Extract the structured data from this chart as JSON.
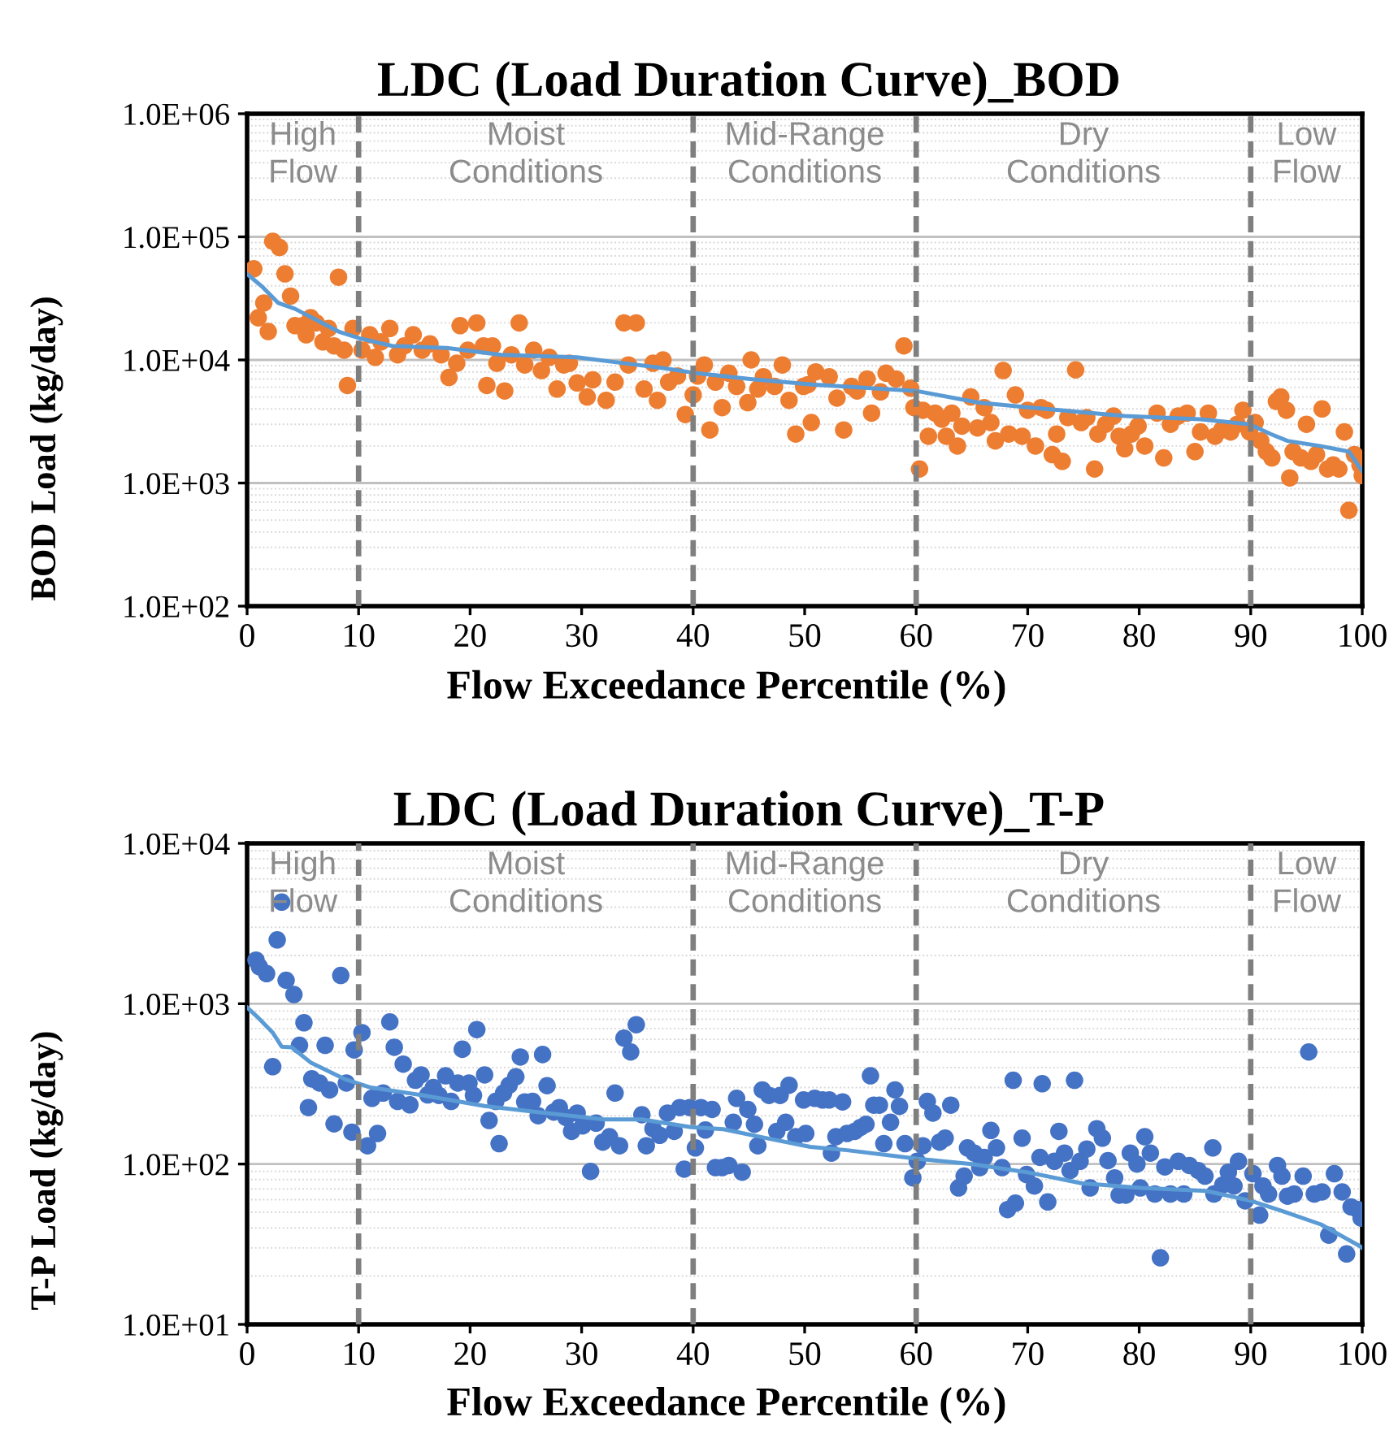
{
  "chart_data": [
    {
      "type": "scatter",
      "title": "LDC (Load Duration Curve)_BOD",
      "xlabel": "Flow Exceedance Percentile (%)",
      "ylabel": "BOD Load (kg/day)",
      "log": "y",
      "grid": "y",
      "xlim": [
        0,
        100
      ],
      "xticks": [
        0,
        10,
        20,
        30,
        40,
        50,
        60,
        70,
        80,
        90,
        100
      ],
      "ylim": [
        100,
        1000000
      ],
      "yticks": [
        {
          "value": 100,
          "label": "1.0E+02"
        },
        {
          "value": 1000,
          "label": "1.0E+03"
        },
        {
          "value": 10000,
          "label": "1.0E+04"
        },
        {
          "value": 100000,
          "label": "1.0E+05"
        },
        {
          "value": 1000000,
          "label": "1.0E+06"
        }
      ],
      "ref_lines": [
        {
          "axis": "x",
          "value": 10,
          "color": "#7f7f7f",
          "line_style": "dashed"
        },
        {
          "axis": "x",
          "value": 40,
          "color": "#7f7f7f",
          "line_style": "dashed"
        },
        {
          "axis": "x",
          "value": 60,
          "color": "#7f7f7f",
          "line_style": "dashed"
        },
        {
          "axis": "x",
          "value": 90,
          "color": "#7f7f7f",
          "line_style": "dashed"
        }
      ],
      "annotations": [
        "High\nFlow",
        "Moist\nConditions",
        "Mid-Range\nConditions",
        "Dry\nConditions",
        "Low\nFlow"
      ],
      "series": [
        {
          "color": "#ed7d31",
          "marker": "circle",
          "x": [
            0.6,
            1.0,
            1.5,
            1.9,
            2.3,
            2.9,
            3.4,
            3.9,
            4.3,
            5.0,
            5.3,
            5.7,
            6.2,
            6.8,
            7.3,
            7.8,
            8.2,
            8.7,
            9.0,
            9.5,
            10.3,
            11.0,
            11.5,
            12.0,
            12.8,
            13.5,
            14.1,
            14.9,
            15.7,
            16.4,
            17.4,
            18.1,
            18.8,
            19.1,
            19.8,
            20.6,
            21.2,
            21.5,
            22.0,
            22.4,
            23.1,
            23.7,
            24.4,
            24.9,
            25.7,
            26.4,
            27.1,
            27.8,
            28.4,
            28.9,
            29.6,
            30.5,
            31.0,
            32.2,
            33.0,
            33.8,
            34.2,
            34.9,
            35.6,
            36.4,
            36.8,
            37.3,
            37.8,
            38.6,
            39.3,
            40.0,
            40.4,
            41.0,
            41.5,
            42.0,
            42.6,
            43.2,
            43.9,
            44.9,
            45.2,
            45.8,
            46.3,
            47.3,
            48.0,
            48.6,
            49.2,
            49.9,
            50.3,
            50.6,
            51.0,
            52.2,
            52.9,
            53.5,
            54.2,
            54.7,
            55.6,
            56.0,
            56.8,
            57.3,
            58.2,
            58.9,
            59.5,
            59.8,
            60.3,
            60.6,
            61.1,
            61.7,
            62.3,
            62.7,
            63.2,
            63.7,
            64.1,
            64.9,
            65.5,
            66.1,
            66.7,
            67.1,
            67.8,
            68.3,
            68.9,
            69.5,
            70.0,
            70.7,
            71.2,
            71.7,
            72.2,
            72.6,
            73.1,
            73.6,
            74.3,
            74.8,
            75.3,
            76.0,
            76.3,
            77.0,
            77.7,
            78.2,
            78.7,
            79.3,
            79.9,
            80.5,
            81.6,
            82.2,
            82.8,
            83.5,
            84.3,
            85.0,
            85.5,
            86.2,
            86.8,
            87.4,
            88.2,
            88.8,
            89.3,
            89.9,
            90.4,
            90.9,
            91.4,
            91.9,
            92.3,
            92.7,
            93.2,
            93.5,
            93.8,
            94.5,
            95.0,
            95.4,
            95.9,
            96.4,
            96.9,
            97.4,
            97.9,
            98.4,
            98.8,
            99.3,
            99.8,
            100
          ],
          "values": [
            55000,
            22000,
            29000,
            17000,
            92000,
            82000,
            50000,
            33000,
            19000,
            19000,
            16000,
            22000,
            20000,
            14000,
            18000,
            13000,
            47000,
            12000,
            6200,
            18000,
            12000,
            16000,
            10500,
            14000,
            18000,
            11000,
            13000,
            16000,
            12000,
            13500,
            11000,
            7200,
            9400,
            19000,
            12000,
            20000,
            13000,
            6200,
            13000,
            9400,
            5600,
            11000,
            20000,
            9100,
            12000,
            8200,
            10500,
            5800,
            9100,
            9400,
            6500,
            5000,
            6900,
            4700,
            6600,
            20000,
            9100,
            20000,
            5800,
            9400,
            4700,
            10000,
            6600,
            7400,
            3600,
            5200,
            7400,
            9100,
            2700,
            6600,
            4100,
            7800,
            6100,
            4500,
            10000,
            5800,
            7300,
            6100,
            9100,
            4700,
            2500,
            6100,
            6300,
            3100,
            8000,
            7300,
            4900,
            2700,
            6100,
            5600,
            7000,
            3700,
            5500,
            7800,
            7000,
            13000,
            5900,
            4100,
            1300,
            3900,
            2400,
            3700,
            3300,
            2400,
            3700,
            2000,
            2900,
            5000,
            2800,
            4100,
            3100,
            2200,
            8200,
            2500,
            5200,
            2400,
            3900,
            2000,
            4100,
            3900,
            1700,
            2500,
            1500,
            3400,
            8300,
            3100,
            3400,
            1300,
            2500,
            3000,
            3500,
            2400,
            1900,
            2500,
            2900,
            2000,
            3700,
            1600,
            3000,
            3500,
            3700,
            1800,
            2600,
            3700,
            2400,
            2700,
            2600,
            3000,
            3900,
            2600,
            3100,
            2200,
            1800,
            1600,
            4600,
            5000,
            3900,
            1100,
            1800,
            1600,
            3000,
            1500,
            1700,
            4000,
            1300,
            1400,
            1300,
            2600,
            600,
            1700,
            1400,
            1150
          ]
        },
        {
          "type": "line",
          "color": "#5b9bd5",
          "marker": "none",
          "x": [
            0,
            1.4,
            2.8,
            4.3,
            8.2,
            10.1,
            13,
            17.9,
            22.8,
            29.6,
            33.4,
            37.3,
            40.3,
            45.1,
            50.9,
            60,
            65.6,
            69,
            78.7,
            85.5,
            89.9,
            91.8,
            93.3,
            96.2,
            98.8,
            100
          ],
          "values": [
            50000,
            39000,
            29000,
            26000,
            17000,
            15000,
            13000,
            12500,
            11000,
            10500,
            9500,
            8600,
            7800,
            7000,
            6300,
            5600,
            4500,
            4200,
            3500,
            3300,
            3000,
            2500,
            2200,
            2000,
            1800,
            1250
          ]
        }
      ]
    },
    {
      "type": "scatter",
      "title": "LDC (Load Duration Curve)_T-P",
      "xlabel": "Flow Exceedance Percentile (%)",
      "ylabel": "T-P Load (kg/day)",
      "log": "y",
      "grid": "y",
      "xlim": [
        0,
        100
      ],
      "xticks": [
        0,
        10,
        20,
        30,
        40,
        50,
        60,
        70,
        80,
        90,
        100
      ],
      "ylim": [
        10,
        10000
      ],
      "yticks": [
        {
          "value": 10,
          "label": "1.0E+01"
        },
        {
          "value": 100,
          "label": "1.0E+02"
        },
        {
          "value": 1000,
          "label": "1.0E+03"
        },
        {
          "value": 10000,
          "label": "1.0E+04"
        }
      ],
      "ref_lines": [
        {
          "axis": "x",
          "value": 10,
          "color": "#7f7f7f",
          "line_style": "dashed"
        },
        {
          "axis": "x",
          "value": 40,
          "color": "#7f7f7f",
          "line_style": "dashed"
        },
        {
          "axis": "x",
          "value": 60,
          "color": "#7f7f7f",
          "line_style": "dashed"
        },
        {
          "axis": "x",
          "value": 90,
          "color": "#7f7f7f",
          "line_style": "dashed"
        }
      ],
      "annotations": [
        "High\nFlow",
        "Moist\nConditions",
        "Mid-Range\nConditions",
        "Dry\nConditions",
        "Low\nFlow"
      ],
      "series": [
        {
          "color": "#4472c4",
          "marker": "circle",
          "x": [
            0.8,
            1.1,
            1.75,
            2.3,
            2.7,
            3.1,
            3.5,
            4.2,
            4.7,
            5.1,
            5.5,
            5.8,
            6.5,
            7.0,
            7.4,
            7.8,
            8.4,
            8.9,
            9.4,
            9.6,
            10.3,
            10.8,
            11.2,
            11.7,
            12.2,
            12.8,
            13.2,
            13.5,
            14.0,
            14.6,
            15.1,
            15.6,
            16.2,
            16.7,
            17.2,
            17.8,
            18.3,
            18.9,
            19.3,
            19.9,
            20.3,
            20.6,
            21.3,
            21.7,
            22.3,
            22.6,
            23.0,
            23.5,
            24.1,
            24.5,
            24.9,
            25.6,
            26.1,
            26.5,
            26.9,
            27.5,
            28.0,
            28.6,
            29.1,
            29.6,
            30.1,
            30.8,
            31.3,
            31.9,
            32.5,
            33.0,
            33.4,
            33.8,
            34.4,
            34.9,
            35.4,
            35.8,
            36.4,
            37.0,
            37.7,
            38.3,
            38.8,
            39.2,
            39.7,
            40.2,
            40.7,
            41.1,
            41.7,
            42.0,
            42.6,
            43.2,
            43.6,
            43.9,
            44.4,
            44.9,
            45.5,
            45.8,
            46.2,
            46.8,
            47.5,
            47.8,
            48.3,
            48.6,
            49.2,
            49.9,
            50.1,
            50.9,
            51.6,
            52.2,
            52.4,
            52.8,
            53.4,
            53.8,
            54.5,
            55.0,
            55.5,
            55.9,
            56.2,
            56.7,
            57.1,
            57.7,
            58.1,
            58.5,
            59.0,
            59.7,
            60.1,
            60.6,
            61.0,
            61.5,
            62.1,
            62.6,
            63.1,
            63.8,
            64.3,
            64.6,
            65.2,
            65.7,
            66.1,
            66.7,
            67.2,
            67.7,
            68.2,
            68.7,
            68.9,
            69.5,
            69.9,
            70.6,
            71.1,
            71.3,
            71.8,
            72.4,
            72.8,
            73.3,
            73.8,
            74.2,
            74.7,
            75.3,
            75.6,
            76.2,
            76.7,
            77.2,
            77.8,
            78.2,
            78.8,
            79.2,
            79.8,
            80.1,
            80.5,
            81.0,
            81.4,
            81.9,
            82.3,
            82.8,
            83.5,
            84.0,
            84.5,
            85.3,
            85.9,
            86.6,
            86.7,
            87.5,
            88.0,
            88.5,
            88.9,
            89.5,
            90.2,
            90.8,
            91.1,
            91.6,
            92.4,
            92.8,
            93.3,
            93.9,
            94.7,
            95.2,
            95.7,
            96.4,
            97.0,
            97.5,
            98.2,
            98.6,
            99.0,
            99.6,
            99.9
          ],
          "values": [
            1870,
            1700,
            1540,
            405,
            2500,
            4300,
            1400,
            1140,
            550,
            760,
            225,
            340,
            320,
            550,
            290,
            178,
            1500,
            320,
            158,
            515,
            660,
            130,
            257,
            155,
            277,
            770,
            535,
            246,
            420,
            234,
            333,
            360,
            270,
            300,
            268,
            355,
            246,
            320,
            520,
            320,
            268,
            690,
            360,
            187,
            246,
            134,
            277,
            310,
            350,
            465,
            244,
            246,
            200,
            482,
            308,
            211,
            225,
            195,
            160,
            208,
            173,
            90,
            180,
            137,
            148,
            277,
            130,
            610,
            500,
            740,
            203,
            130,
            166,
            151,
            208,
            160,
            225,
            93,
            225,
            126,
            225,
            163,
            219,
            95,
            95,
            98,
            182,
            257,
            89,
            219,
            177,
            130,
            290,
            268,
            160,
            268,
            182,
            310,
            148,
            251,
            155,
            257,
            251,
            251,
            117,
            148,
            244,
            155,
            160,
            169,
            177,
            355,
            233,
            233,
            134,
            182,
            290,
            229,
            134,
            82,
            104,
            130,
            246,
            208,
            137,
            145,
            233,
            71,
            84,
            126,
            117,
            95,
            110,
            162,
            126,
            95,
            52,
            333,
            57,
            145,
            86,
            73,
            110,
            317,
            58,
            104,
            160,
            117,
            91,
            333,
            104,
            124,
            71,
            166,
            145,
            105,
            82,
            64,
            64,
            117,
            100,
            71,
            148,
            117,
            65,
            26,
            96,
            65,
            104,
            65,
            98,
            91,
            84,
            126,
            65,
            74,
            89,
            73,
            104,
            59,
            87,
            48,
            73,
            65,
            98,
            84,
            63,
            65,
            84,
            500,
            65,
            67,
            36,
            87,
            67,
            27.5,
            54,
            52,
            46
          ]
        },
        {
          "type": "line",
          "color": "#5b9bd5",
          "marker": "none",
          "x": [
            0,
            0.9,
            2.3,
            3.1,
            4.0,
            5.7,
            8.7,
            11.1,
            15.5,
            21.3,
            26.2,
            32,
            35.4,
            39.8,
            42.7,
            46.6,
            50.5,
            53.8,
            60,
            65,
            69.9,
            74.8,
            80.1,
            86,
            90,
            92.8,
            96.3,
            99.7,
            100
          ],
          "values": [
            950,
            830,
            660,
            540,
            535,
            430,
            340,
            300,
            270,
            230,
            210,
            190,
            190,
            170,
            165,
            145,
            128,
            122,
            108,
            100,
            89,
            76,
            71,
            68,
            59,
            51,
            42,
            31,
            30
          ]
        }
      ]
    }
  ]
}
